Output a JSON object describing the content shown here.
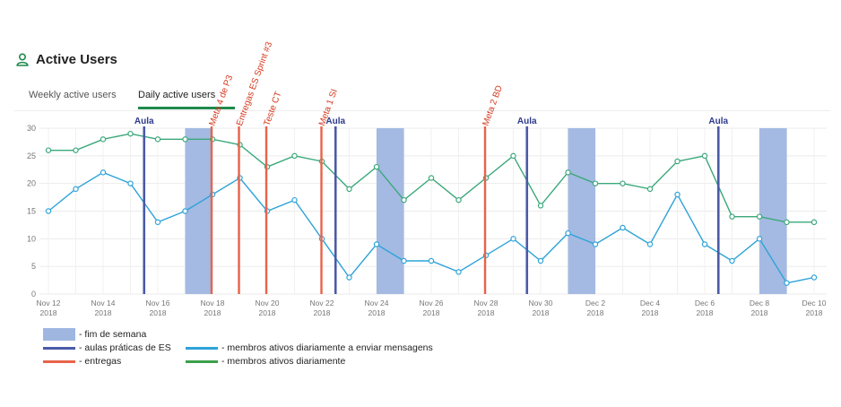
{
  "header": {
    "title": "Active Users",
    "icon": "user-icon"
  },
  "tabs": [
    {
      "label": "Weekly active users",
      "active": false
    },
    {
      "label": "Daily active users",
      "active": true
    }
  ],
  "colors": {
    "accent": "#1f8a4c",
    "weekend": "#9fb6e0",
    "classes": "#4a5aa8",
    "deadlines": "#e8634a",
    "messaging": "#2ea3d8",
    "active": "#3aa87a"
  },
  "chart_data": {
    "type": "line",
    "x": [
      "2018-11-12",
      "2018-11-13",
      "2018-11-14",
      "2018-11-15",
      "2018-11-16",
      "2018-11-17",
      "2018-11-18",
      "2018-11-19",
      "2018-11-20",
      "2018-11-21",
      "2018-11-22",
      "2018-11-23",
      "2018-11-24",
      "2018-11-25",
      "2018-11-26",
      "2018-11-27",
      "2018-11-28",
      "2018-11-29",
      "2018-11-30",
      "2018-12-01",
      "2018-12-02",
      "2018-12-03",
      "2018-12-04",
      "2018-12-05",
      "2018-12-06",
      "2018-12-07",
      "2018-12-08",
      "2018-12-09",
      "2018-12-10"
    ],
    "x_tick_labels": [
      [
        "Nov 12",
        "2018"
      ],
      [
        "Nov 14",
        "2018"
      ],
      [
        "Nov 16",
        "2018"
      ],
      [
        "Nov 18",
        "2018"
      ],
      [
        "Nov 20",
        "2018"
      ],
      [
        "Nov 22",
        "2018"
      ],
      [
        "Nov 24",
        "2018"
      ],
      [
        "Nov 26",
        "2018"
      ],
      [
        "Nov 28",
        "2018"
      ],
      [
        "Nov 30",
        "2018"
      ],
      [
        "Dec 2",
        "2018"
      ],
      [
        "Dec 4",
        "2018"
      ],
      [
        "Dec 6",
        "2018"
      ],
      [
        "Dec 8",
        "2018"
      ],
      [
        "Dec 10",
        "2018"
      ]
    ],
    "ylim": [
      0,
      30
    ],
    "y_ticks": [
      0,
      5,
      10,
      15,
      20,
      25,
      30
    ],
    "grid": true,
    "series": [
      {
        "key": "active",
        "values": [
          26,
          26,
          28,
          29,
          28,
          28,
          28,
          27,
          23,
          25,
          24,
          19,
          23,
          17,
          21,
          17,
          21,
          25,
          16,
          22,
          20,
          20,
          19,
          24,
          25,
          14,
          14,
          13,
          13
        ]
      },
      {
        "key": "messaging",
        "values": [
          15,
          19,
          22,
          20,
          13,
          15,
          18,
          21,
          15,
          17,
          10,
          3,
          9,
          6,
          6,
          4,
          7,
          10,
          6,
          11,
          9,
          12,
          9,
          18,
          9,
          6,
          10,
          2,
          3
        ]
      }
    ],
    "weekend_bands": [
      [
        "2018-11-17",
        "2018-11-18"
      ],
      [
        "2018-11-24",
        "2018-11-25"
      ],
      [
        "2018-12-01",
        "2018-12-02"
      ],
      [
        "2018-12-08",
        "2018-12-09"
      ]
    ],
    "class_lines": [
      {
        "date": "2018-11-15",
        "label": "Aula"
      },
      {
        "date": "2018-11-22",
        "label": "Aula"
      },
      {
        "date": "2018-11-29",
        "label": "Aula"
      },
      {
        "date": "2018-12-06",
        "label": "Aula"
      }
    ],
    "deadline_lines": [
      {
        "date": "2018-11-18",
        "label": "Meta 4 de P3"
      },
      {
        "date": "2018-11-19",
        "label": "Entregas ES Sprint #3"
      },
      {
        "date": "2018-11-20",
        "label": "Teste CT"
      },
      {
        "date": "2018-11-22",
        "label": "Meta 1 SI"
      },
      {
        "date": "2018-11-28",
        "label": "Meta 2 BD"
      }
    ]
  },
  "legend": {
    "weekend": "- fim de semana",
    "classes": "- aulas práticas de ES",
    "deadlines": "- entregas",
    "messaging": "- membros ativos diariamente a enviar mensagens",
    "active": "- membros ativos diariamente"
  }
}
